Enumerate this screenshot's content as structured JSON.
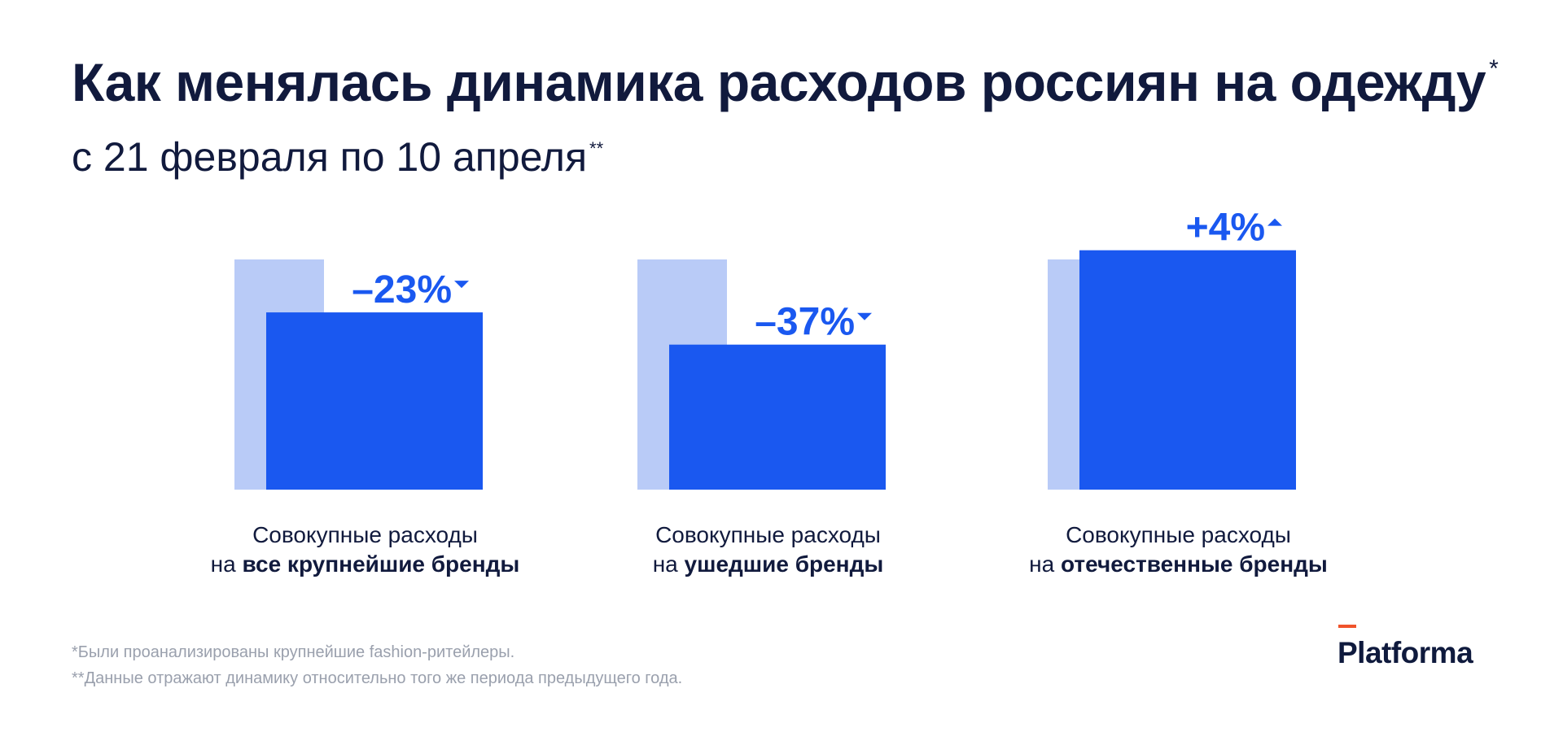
{
  "header": {
    "title": "Как менялась динамика расходов россиян на одежду",
    "title_mark": "*",
    "subtitle": "с 21 февраля по 10 апреля",
    "subtitle_mark": "**"
  },
  "colors": {
    "prev": "#b9cbf7",
    "curr": "#1a58f0",
    "text": "#111a3d",
    "muted": "#9aa0ad",
    "brand_accent": "#f0532b"
  },
  "chart_data": {
    "type": "bar",
    "categories": [
      "Совокупные расходы на все крупнейшие бренды",
      "Совокупные расходы на ушедшие бренды",
      "Совокупные расходы на отечественные бренды"
    ],
    "series": [
      {
        "values": [
          100,
          100,
          100
        ]
      },
      {
        "values": [
          77,
          63,
          104
        ]
      }
    ],
    "change_labels": [
      "–23%",
      "–37%",
      "+4%"
    ],
    "direction": [
      "down",
      "down",
      "up"
    ],
    "category_labels": [
      {
        "line1": "Совокупные расходы",
        "prefix": "на ",
        "bold": "все крупнейшие бренды"
      },
      {
        "line1": "Совокупные расходы",
        "prefix": "на ",
        "bold": "ушедшие бренды"
      },
      {
        "line1": "Совокупные расходы",
        "prefix": "на ",
        "bold": "отечественные бренды"
      }
    ]
  },
  "footnotes": [
    "*Были проанализированы крупнейшие fashion-ритейлеры.",
    "**Данные отражают динамику относительно того же периода предыдущего года."
  ],
  "logo": {
    "text": "Platforma"
  }
}
